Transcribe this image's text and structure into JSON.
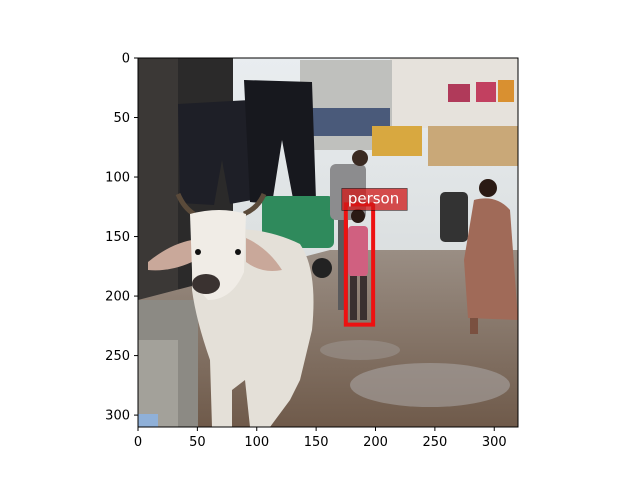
{
  "figure": {
    "x_ticks": [
      "0",
      "50",
      "100",
      "150",
      "200",
      "250",
      "300"
    ],
    "y_ticks": [
      "0",
      "50",
      "100",
      "150",
      "200",
      "250",
      "300"
    ],
    "x_range": [
      0,
      320
    ],
    "y_range": [
      310,
      0
    ]
  },
  "detection": {
    "label": "person",
    "box": {
      "x1": 175,
      "y1": 123,
      "x2": 198,
      "y2": 224
    },
    "color": "#ee1111"
  },
  "scene": {
    "sky_color": "#e8ecef",
    "ground_color": "#8a7868",
    "cow_color": "#e4e0d8"
  }
}
